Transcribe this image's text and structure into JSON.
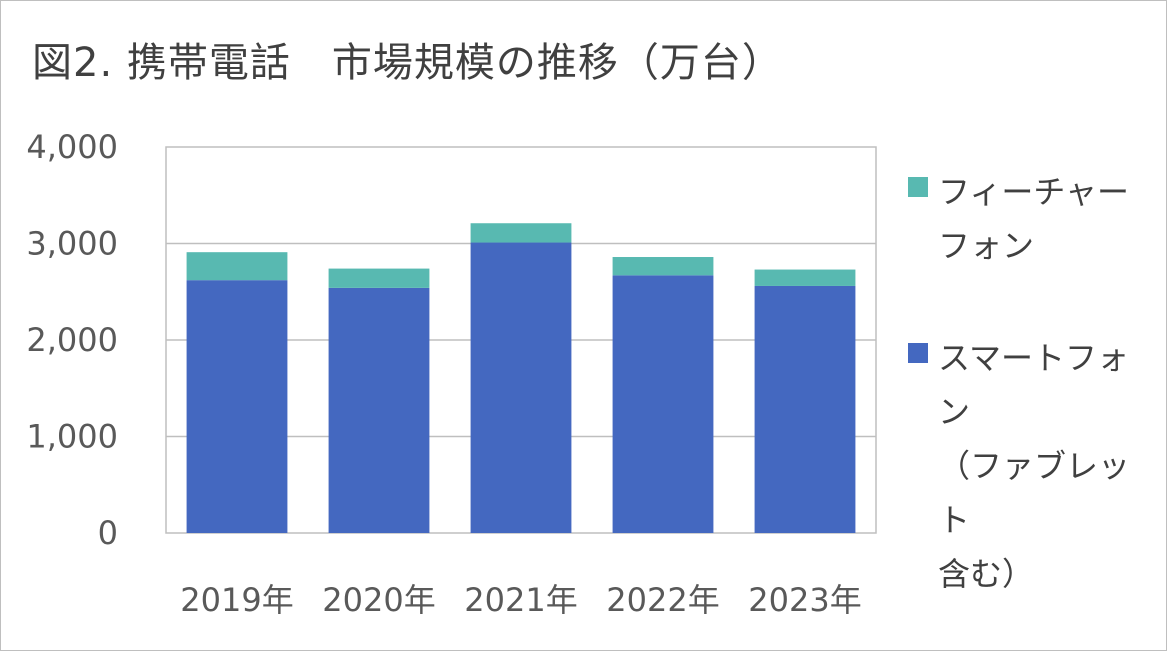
{
  "title": "図2. 携帯電話　市場規模の推移（万台）",
  "chart_data": {
    "type": "bar",
    "stacked": true,
    "title": "図2. 携帯電話　市場規模の推移（万台）",
    "categories": [
      "2019年",
      "2020年",
      "2021年",
      "2022年",
      "2023年"
    ],
    "series": [
      {
        "name": "スマートフォン\n（ファブレット\n含む）",
        "color": "#4468c0",
        "values": [
          2620,
          2540,
          3010,
          2670,
          2560
        ]
      },
      {
        "name": "フィーチャー\nフォン",
        "color": "#58b9b1",
        "values": [
          290,
          200,
          200,
          190,
          170
        ]
      }
    ],
    "yticks": [
      "0",
      "1,000",
      "2,000",
      "3,000",
      "4,000"
    ],
    "ylim": [
      0,
      4000
    ],
    "grid": true,
    "legend_position": "right"
  },
  "legend": [
    {
      "label": "フィーチャー\nフォン",
      "color": "#58b9b1"
    },
    {
      "label": "スマートフォン\n（ファブレット\n含む）",
      "color": "#4468c0"
    }
  ]
}
